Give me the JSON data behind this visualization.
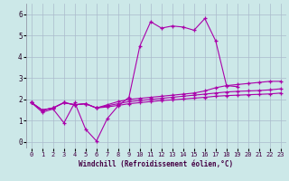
{
  "xlabel": "Windchill (Refroidissement éolien,°C)",
  "background_color": "#cce8e8",
  "grid_color": "#aabbcc",
  "line_color": "#aa00aa",
  "xlim": [
    -0.5,
    23.5
  ],
  "ylim": [
    -0.3,
    6.5
  ],
  "xticks": [
    0,
    1,
    2,
    3,
    4,
    5,
    6,
    7,
    8,
    9,
    10,
    11,
    12,
    13,
    14,
    15,
    16,
    17,
    18,
    19,
    20,
    21,
    22,
    23
  ],
  "yticks": [
    0,
    1,
    2,
    3,
    4,
    5,
    6
  ],
  "series": [
    [
      1.85,
      1.4,
      1.55,
      0.9,
      1.85,
      0.6,
      0.05,
      1.1,
      1.7,
      2.1,
      4.5,
      5.65,
      5.35,
      5.45,
      5.4,
      5.25,
      5.8,
      4.75,
      2.65,
      2.6,
      null,
      null,
      null,
      null
    ],
    [
      1.85,
      1.5,
      1.6,
      1.85,
      1.75,
      1.8,
      1.6,
      1.75,
      1.9,
      2.0,
      2.05,
      2.1,
      2.15,
      2.2,
      2.25,
      2.3,
      2.4,
      2.55,
      2.65,
      2.7,
      2.75,
      2.8,
      2.85,
      2.85
    ],
    [
      1.85,
      1.5,
      1.6,
      1.85,
      1.75,
      1.8,
      1.6,
      1.7,
      1.8,
      1.9,
      1.95,
      2.0,
      2.05,
      2.1,
      2.15,
      2.2,
      2.25,
      2.3,
      2.35,
      2.38,
      2.4,
      2.42,
      2.45,
      2.5
    ],
    [
      1.85,
      1.5,
      1.6,
      1.85,
      1.75,
      1.8,
      1.6,
      1.65,
      1.72,
      1.8,
      1.85,
      1.9,
      1.95,
      1.98,
      2.02,
      2.06,
      2.1,
      2.15,
      2.18,
      2.2,
      2.22,
      2.24,
      2.26,
      2.3
    ]
  ]
}
